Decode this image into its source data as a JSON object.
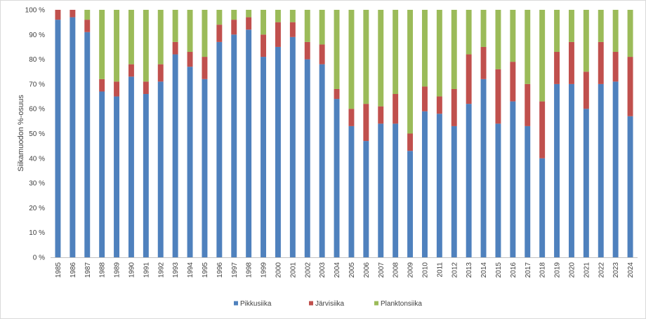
{
  "chart_data": {
    "type": "bar",
    "stacked": true,
    "title": "",
    "xlabel": "",
    "ylabel": "Siikamuodon %-osuus",
    "ylim": [
      0,
      100
    ],
    "yticks": [
      "0 %",
      "10 %",
      "20 %",
      "30 %",
      "40 %",
      "50 %",
      "60 %",
      "70 %",
      "80 %",
      "90 %",
      "100 %"
    ],
    "grid": false,
    "legend_position": "bottom",
    "categories": [
      "1985",
      "1986",
      "1987",
      "1988",
      "1989",
      "1990",
      "1991",
      "1992",
      "1993",
      "1994",
      "1995",
      "1996",
      "1997",
      "1998",
      "1999",
      "2000",
      "2001",
      "2002",
      "2003",
      "2004",
      "2005",
      "2006",
      "2007",
      "2008",
      "2009",
      "2010",
      "2011",
      "2012",
      "2013",
      "2014",
      "2015",
      "2016",
      "2017",
      "2018",
      "2019",
      "2020",
      "2021",
      "2022",
      "2023",
      "2024"
    ],
    "series": [
      {
        "name": "Pikkusiika",
        "color": "#4f81bd",
        "values": [
          96,
          97,
          91,
          67,
          65,
          73,
          66,
          71,
          82,
          77,
          72,
          87,
          90,
          92,
          81,
          85,
          89,
          80,
          78,
          64,
          53,
          47,
          54,
          54,
          43,
          59,
          58,
          53,
          62,
          72,
          54,
          63,
          53,
          40,
          70,
          70,
          60,
          70,
          71,
          57
        ]
      },
      {
        "name": "Järvisiika",
        "color": "#c0504d",
        "values": [
          4,
          3,
          5,
          5,
          6,
          5,
          5,
          7,
          5,
          6,
          9,
          7,
          6,
          5,
          9,
          10,
          6,
          7,
          8,
          4,
          7,
          15,
          7,
          12,
          7,
          10,
          7,
          15,
          20,
          13,
          22,
          16,
          17,
          23,
          13,
          17,
          15,
          17,
          12,
          24
        ]
      },
      {
        "name": "Planktonsiika",
        "color": "#9bbb59",
        "values": [
          0,
          0,
          4,
          28,
          29,
          22,
          29,
          22,
          13,
          17,
          19,
          6,
          4,
          3,
          10,
          5,
          5,
          13,
          14,
          32,
          40,
          38,
          39,
          34,
          50,
          31,
          35,
          32,
          18,
          15,
          24,
          21,
          30,
          37,
          17,
          13,
          25,
          13,
          17,
          19
        ]
      }
    ]
  }
}
